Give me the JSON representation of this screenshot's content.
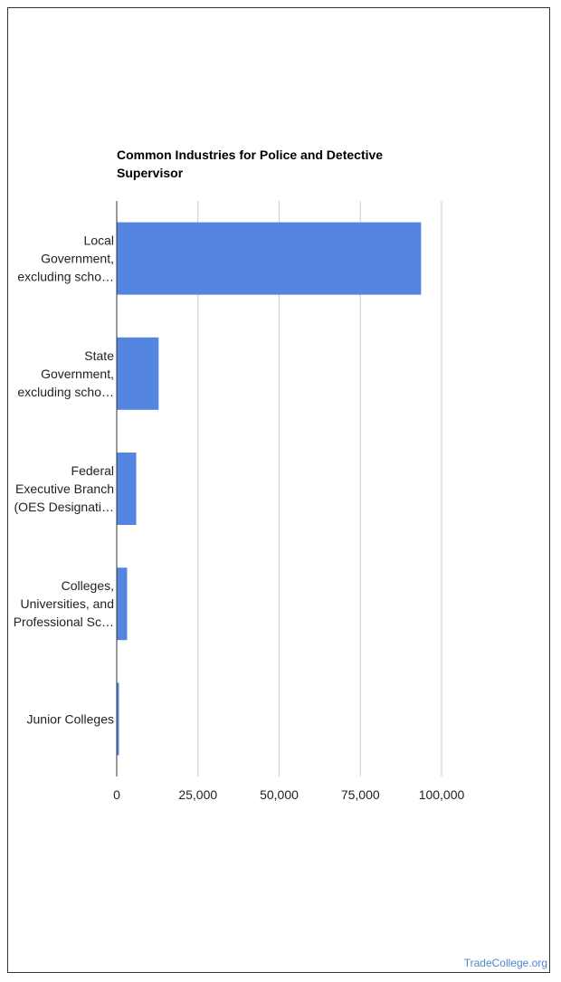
{
  "chart_data": {
    "type": "bar",
    "orientation": "horizontal",
    "title": "Common Industries for Police and Detective Supervisor",
    "categories": [
      [
        "Local",
        "Government,",
        "excluding scho…"
      ],
      [
        "State",
        "Government,",
        "excluding scho…"
      ],
      [
        "Federal",
        "Executive Branch",
        "(OES Designati…"
      ],
      [
        "Colleges,",
        "Universities, and",
        "Professional Sc…"
      ],
      [
        "Junior Colleges"
      ]
    ],
    "values": [
      93700,
      12900,
      6000,
      3200,
      700
    ],
    "x_ticks": [
      "0",
      "25,000",
      "50,000",
      "75,000",
      "100,000"
    ],
    "xlim": [
      0,
      100000
    ],
    "grid": true,
    "legend": "none",
    "bar_color": "#5385e1"
  },
  "watermark": "TradeCollege.org"
}
